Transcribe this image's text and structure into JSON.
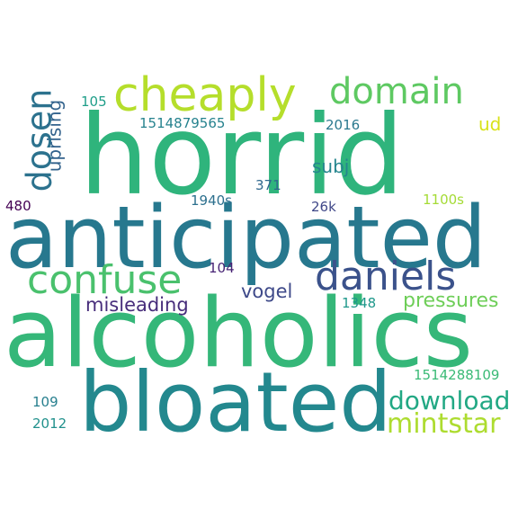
{
  "words": [
    {
      "text": "horrid",
      "color": "#2fb47c"
    },
    {
      "text": "anticipated",
      "color": "#27788e"
    },
    {
      "text": "alcoholics",
      "color": "#35b779"
    },
    {
      "text": "bloated",
      "color": "#23888e"
    },
    {
      "text": "cheaply",
      "color": "#b5de2b"
    },
    {
      "text": "domain",
      "color": "#5ec962"
    },
    {
      "text": "confuse",
      "color": "#4ac16d"
    },
    {
      "text": "daniels",
      "color": "#3b528b"
    },
    {
      "text": "dosen",
      "color": "#2c728e"
    },
    {
      "text": "download",
      "color": "#22a884"
    },
    {
      "text": "mintstar",
      "color": "#addc30"
    },
    {
      "text": "uprising",
      "color": "#33638d"
    },
    {
      "text": "pressures",
      "color": "#6ece58"
    },
    {
      "text": "misleading",
      "color": "#472d7b"
    },
    {
      "text": "vogel",
      "color": "#3e4989"
    },
    {
      "text": "subj",
      "color": "#25858e"
    },
    {
      "text": "ud",
      "color": "#d8e219"
    },
    {
      "text": "1514879565",
      "color": "#26828e"
    },
    {
      "text": "105",
      "color": "#1f9e89"
    },
    {
      "text": "2016",
      "color": "#2a788e"
    },
    {
      "text": "1940s",
      "color": "#2d708e"
    },
    {
      "text": "371",
      "color": "#31688e"
    },
    {
      "text": "480",
      "color": "#440154"
    },
    {
      "text": "26k",
      "color": "#3f4788"
    },
    {
      "text": "1100s",
      "color": "#a5db36"
    },
    {
      "text": "104",
      "color": "#482475"
    },
    {
      "text": "1348",
      "color": "#1f988b"
    },
    {
      "text": "1514288109",
      "color": "#3aba76"
    },
    {
      "text": "109",
      "color": "#277f8e"
    },
    {
      "text": "2012",
      "color": "#21918c"
    }
  ]
}
